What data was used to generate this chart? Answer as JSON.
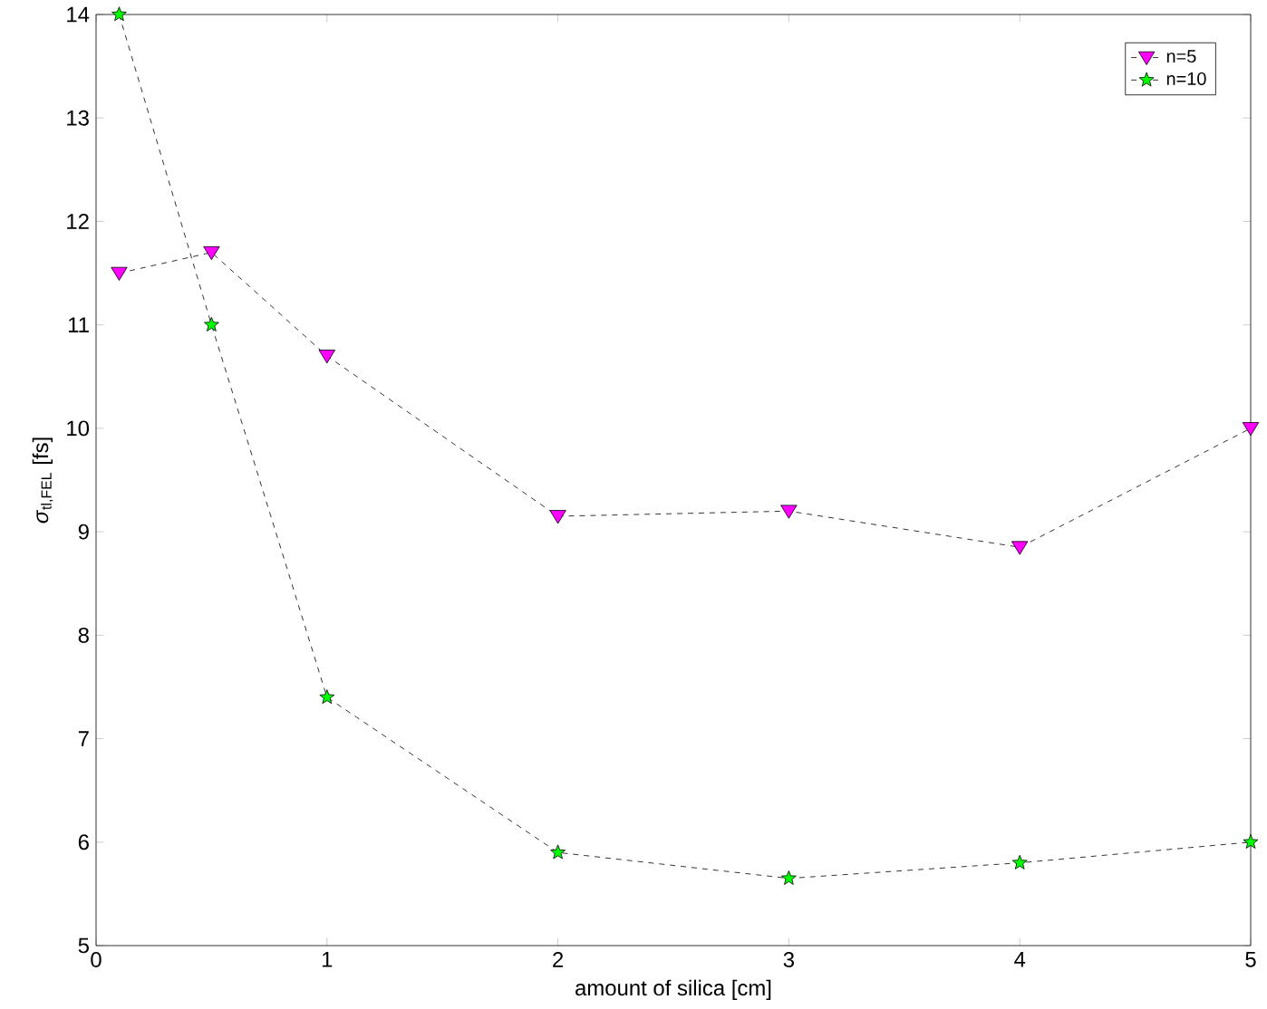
{
  "chart_data": {
    "type": "line",
    "xlabel": "amount of silica [cm]",
    "ylabel": "*σ*$_{tl,FEL}$ [fs]",
    "xlim": [
      0,
      5
    ],
    "ylim": [
      5,
      14
    ],
    "xticks": [
      0,
      1,
      2,
      3,
      4,
      5
    ],
    "yticks": [
      5,
      6,
      7,
      8,
      9,
      10,
      11,
      12,
      13,
      14
    ],
    "grid": false,
    "legend": "top right",
    "line_style": "dashed",
    "series": [
      {
        "name": "n=5",
        "color": "#ff00ff",
        "marker": "triangle",
        "x": [
          0.1,
          0.5,
          1,
          2,
          3,
          4,
          5
        ],
        "values": [
          11.5,
          11.7,
          10.7,
          9.15,
          9.2,
          8.85,
          10.0
        ]
      },
      {
        "name": "n=10",
        "color": "#00ff00",
        "marker": "star",
        "x": [
          0.1,
          0.5,
          1,
          2,
          3,
          4,
          5
        ],
        "values": [
          14.0,
          11.0,
          7.4,
          5.9,
          5.65,
          5.8,
          6.0
        ]
      }
    ]
  }
}
